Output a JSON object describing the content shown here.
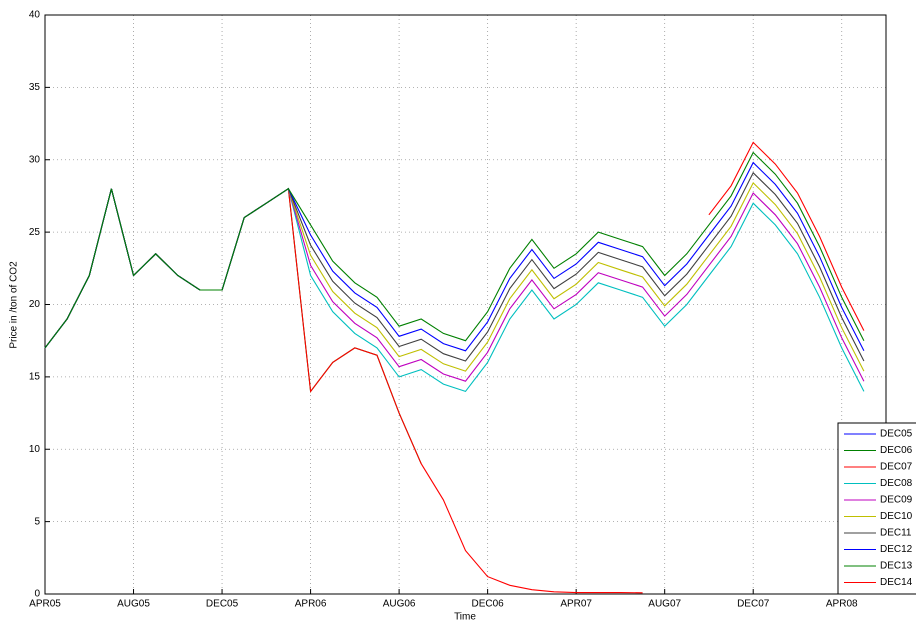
{
  "chart_data": {
    "type": "line",
    "x_label": "Time",
    "y_label": "Price in  /ton of CO2",
    "x": [
      "2005-04",
      "2005-05",
      "2005-06",
      "2005-07",
      "2005-08",
      "2005-09",
      "2005-10",
      "2005-11",
      "2005-12",
      "2006-01",
      "2006-02",
      "2006-03",
      "2006-04",
      "2006-05",
      "2006-06",
      "2006-07",
      "2006-08",
      "2006-09",
      "2006-10",
      "2006-11",
      "2006-12",
      "2007-01",
      "2007-02",
      "2007-03",
      "2007-04",
      "2007-05",
      "2007-06",
      "2007-07",
      "2007-08",
      "2007-09",
      "2007-10",
      "2007-11",
      "2007-12",
      "2008-01",
      "2008-02",
      "2008-03",
      "2008-04",
      "2008-05"
    ],
    "xlim": [
      "2005-04",
      "2008-06"
    ],
    "xticks": [
      {
        "value": "2005-04",
        "label": "APR05"
      },
      {
        "value": "2005-08",
        "label": "AUG05"
      },
      {
        "value": "2005-12",
        "label": "DEC05"
      },
      {
        "value": "2006-04",
        "label": "APR06"
      },
      {
        "value": "2006-08",
        "label": "AUG06"
      },
      {
        "value": "2006-12",
        "label": "DEC06"
      },
      {
        "value": "2007-04",
        "label": "APR07"
      },
      {
        "value": "2007-08",
        "label": "AUG07"
      },
      {
        "value": "2007-12",
        "label": "DEC07"
      },
      {
        "value": "2008-04",
        "label": "APR08"
      }
    ],
    "ylim": [
      0,
      40
    ],
    "yticks": [
      0,
      5,
      10,
      15,
      20,
      25,
      30,
      35,
      40
    ],
    "grid": true,
    "legend": "lower right",
    "series": [
      {
        "name": "DEC05",
        "color": "#0000ff",
        "values": [
          17,
          19,
          22,
          28,
          22,
          23.5,
          22,
          21,
          21,
          null,
          null,
          null,
          null,
          null,
          null,
          null,
          null,
          null,
          null,
          null,
          null,
          null,
          null,
          null,
          null,
          null,
          null,
          null,
          null,
          null,
          null,
          null,
          null,
          null,
          null,
          null,
          null,
          null
        ]
      },
      {
        "name": "DEC06",
        "color": "#008000",
        "values": [
          17,
          19,
          22,
          28,
          22,
          23.5,
          22,
          21,
          21,
          26,
          27,
          28,
          14,
          16,
          17,
          16.5,
          12.5,
          9,
          null,
          null,
          null,
          null,
          null,
          null,
          null,
          null,
          null,
          null,
          null,
          null,
          null,
          null,
          null,
          null,
          null,
          null,
          null,
          null
        ]
      },
      {
        "name": "DEC07",
        "color": "#ff0000",
        "values": [
          17,
          19,
          22,
          28,
          22,
          23.5,
          22,
          21,
          21,
          26,
          27,
          28,
          14,
          16,
          17,
          16.5,
          12.5,
          9,
          6.5,
          3,
          1.2,
          0.6,
          0.3,
          0.15,
          0.1,
          0.1,
          0.1,
          0.08,
          null,
          null,
          null,
          null,
          null,
          null,
          null,
          null,
          null,
          null
        ]
      },
      {
        "name": "DEC08",
        "color": "#00bfbf",
        "values": [
          17,
          19,
          22,
          28,
          22,
          23.5,
          22,
          21,
          21,
          26,
          27,
          28,
          22,
          19.5,
          18,
          17,
          15,
          15.5,
          14.5,
          14,
          16,
          19,
          21,
          19,
          20,
          21.5,
          21,
          20.5,
          18.5,
          20,
          22,
          24,
          27,
          25.5,
          23.5,
          20.5,
          17,
          14
        ]
      },
      {
        "name": "DEC09",
        "color": "#bf00bf",
        "values": [
          17,
          19,
          22,
          28,
          22,
          23.5,
          22,
          21,
          21,
          26,
          27,
          28,
          22.7,
          20.2,
          18.7,
          17.7,
          15.7,
          16.2,
          15.2,
          14.7,
          16.7,
          19.7,
          21.7,
          19.7,
          20.7,
          22.2,
          21.7,
          21.2,
          19.2,
          20.7,
          22.7,
          24.7,
          27.7,
          26.2,
          24.2,
          21.2,
          17.7,
          14.7
        ]
      },
      {
        "name": "DEC10",
        "color": "#bfbf00",
        "values": [
          17,
          19,
          22,
          28,
          22,
          23.5,
          22,
          21,
          21,
          26,
          27,
          28,
          23.4,
          20.9,
          19.4,
          18.4,
          16.4,
          16.9,
          15.9,
          15.4,
          17.4,
          20.4,
          22.4,
          20.4,
          21.4,
          22.9,
          22.4,
          21.9,
          19.9,
          21.4,
          23.4,
          25.4,
          28.4,
          26.9,
          24.9,
          21.9,
          18.4,
          15.4
        ]
      },
      {
        "name": "DEC11",
        "color": "#404040",
        "values": [
          17,
          19,
          22,
          28,
          22,
          23.5,
          22,
          21,
          21,
          26,
          27,
          28,
          24.1,
          21.6,
          20.1,
          19.1,
          17.1,
          17.6,
          16.6,
          16.1,
          18.1,
          21.1,
          23.1,
          21.1,
          22.1,
          23.6,
          23.1,
          22.6,
          20.6,
          22.1,
          24.1,
          26.1,
          29.1,
          27.6,
          25.6,
          22.6,
          19.1,
          16.1
        ]
      },
      {
        "name": "DEC12",
        "color": "#0000ff",
        "values": [
          17,
          19,
          22,
          28,
          22,
          23.5,
          22,
          21,
          21,
          26,
          27,
          28,
          24.8,
          22.3,
          20.8,
          19.8,
          17.8,
          18.3,
          17.3,
          16.8,
          18.8,
          21.8,
          23.8,
          21.8,
          22.8,
          24.3,
          23.8,
          23.3,
          21.3,
          22.8,
          24.8,
          26.8,
          29.8,
          28.3,
          26.3,
          23.3,
          19.8,
          16.8
        ]
      },
      {
        "name": "DEC13",
        "color": "#008000",
        "values": [
          17,
          19,
          22,
          28,
          22,
          23.5,
          22,
          21,
          21,
          26,
          27,
          28,
          25.5,
          23,
          21.5,
          20.5,
          18.5,
          19,
          18,
          17.5,
          19.5,
          22.5,
          24.5,
          22.5,
          23.5,
          25,
          24.5,
          24,
          22,
          23.5,
          25.5,
          27.5,
          30.5,
          29,
          27,
          24,
          20.5,
          17.5
        ]
      },
      {
        "name": "DEC14",
        "color": "#ff0000",
        "values": [
          null,
          null,
          null,
          null,
          null,
          null,
          null,
          null,
          null,
          null,
          null,
          null,
          null,
          null,
          null,
          null,
          null,
          null,
          null,
          null,
          null,
          null,
          null,
          null,
          null,
          null,
          null,
          null,
          null,
          null,
          26.2,
          28.2,
          31.2,
          29.7,
          27.7,
          24.7,
          21.2,
          18.2
        ]
      }
    ]
  }
}
